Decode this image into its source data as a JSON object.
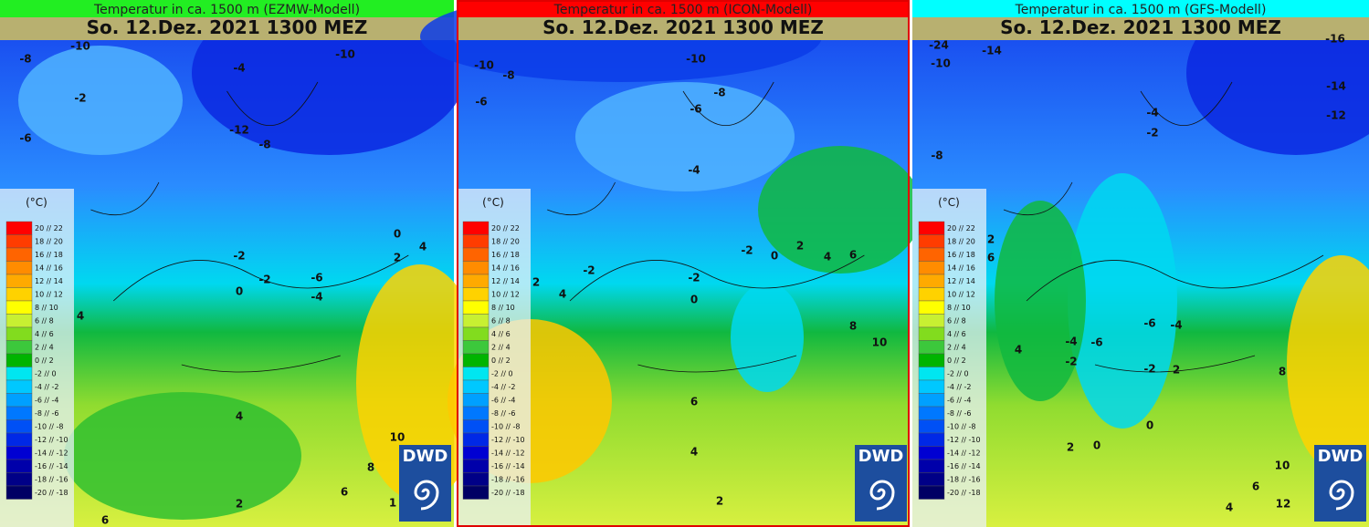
{
  "panels": [
    {
      "title": "Temperatur in ca. 1500 m (EZMW-Modell)",
      "header_color": "#22ee22",
      "date": "So. 12.Dez. 2021 1300 MEZ",
      "contour_labels": [
        "-8",
        "-10",
        "-4",
        "-10",
        "-2",
        "-6",
        "-12",
        "-8",
        "-2",
        "-2",
        "-6",
        "-4",
        "0",
        "0",
        "4",
        "2",
        "4",
        "4",
        "10",
        "8",
        "6",
        "2",
        "6",
        "1"
      ]
    },
    {
      "title": "Temperatur in ca. 1500 m (ICON-Modell)",
      "header_color": "#ff0000",
      "date": "So. 12.Dez. 2021 1300 MEZ",
      "contour_labels": [
        "-10",
        "-8",
        "-10",
        "-6",
        "-8",
        "-6",
        "-4",
        "-2",
        "0",
        "2",
        "4",
        "6",
        "-2",
        "-2",
        "2",
        "4",
        "0",
        "8",
        "10",
        "6",
        "4",
        "2"
      ]
    },
    {
      "title": "Temperatur in ca. 1500 m (GFS-Modell)",
      "header_color": "#00ffff",
      "date": "So. 12.Dez. 2021 1300 MEZ",
      "contour_labels": [
        "-24",
        "-14",
        "-10",
        "-16",
        "-14",
        "-12",
        "-8",
        "-4",
        "-2",
        "2",
        "6",
        "-6",
        "-4",
        "-4",
        "-6",
        "4",
        "-2",
        "-2",
        "2",
        "8",
        "0",
        "2",
        "0",
        "10",
        "6",
        "12",
        "4"
      ]
    }
  ],
  "legend": {
    "unit": "(°C)",
    "items": [
      {
        "label": "20 // 22",
        "color": "#ff0000"
      },
      {
        "label": "18 // 20",
        "color": "#ff3c00"
      },
      {
        "label": "16 // 18",
        "color": "#ff6400"
      },
      {
        "label": "14 // 16",
        "color": "#ff8c00"
      },
      {
        "label": "12 // 14",
        "color": "#ffaa00"
      },
      {
        "label": "10 // 12",
        "color": "#ffd200"
      },
      {
        "label": "8 // 10",
        "color": "#ffff00"
      },
      {
        "label": "6 // 8",
        "color": "#c8f032"
      },
      {
        "label": "4 // 6",
        "color": "#82dc1e"
      },
      {
        "label": "2 // 4",
        "color": "#3cc83c"
      },
      {
        "label": "0 // 2",
        "color": "#00b400"
      },
      {
        "label": "-2 // 0",
        "color": "#00e6f0"
      },
      {
        "label": "-4 // -2",
        "color": "#00c8ff"
      },
      {
        "label": "-6 // -4",
        "color": "#00a0ff"
      },
      {
        "label": "-8 // -6",
        "color": "#0078ff"
      },
      {
        "label": "-10 // -8",
        "color": "#0050f5"
      },
      {
        "label": "-12 // -10",
        "color": "#0028e6"
      },
      {
        "label": "-14 // -12",
        "color": "#0000d2"
      },
      {
        "label": "-16 // -14",
        "color": "#0000aa"
      },
      {
        "label": "-18 // -16",
        "color": "#000087"
      },
      {
        "label": "-20 // -18",
        "color": "#000064"
      }
    ]
  },
  "logo": "DWD"
}
